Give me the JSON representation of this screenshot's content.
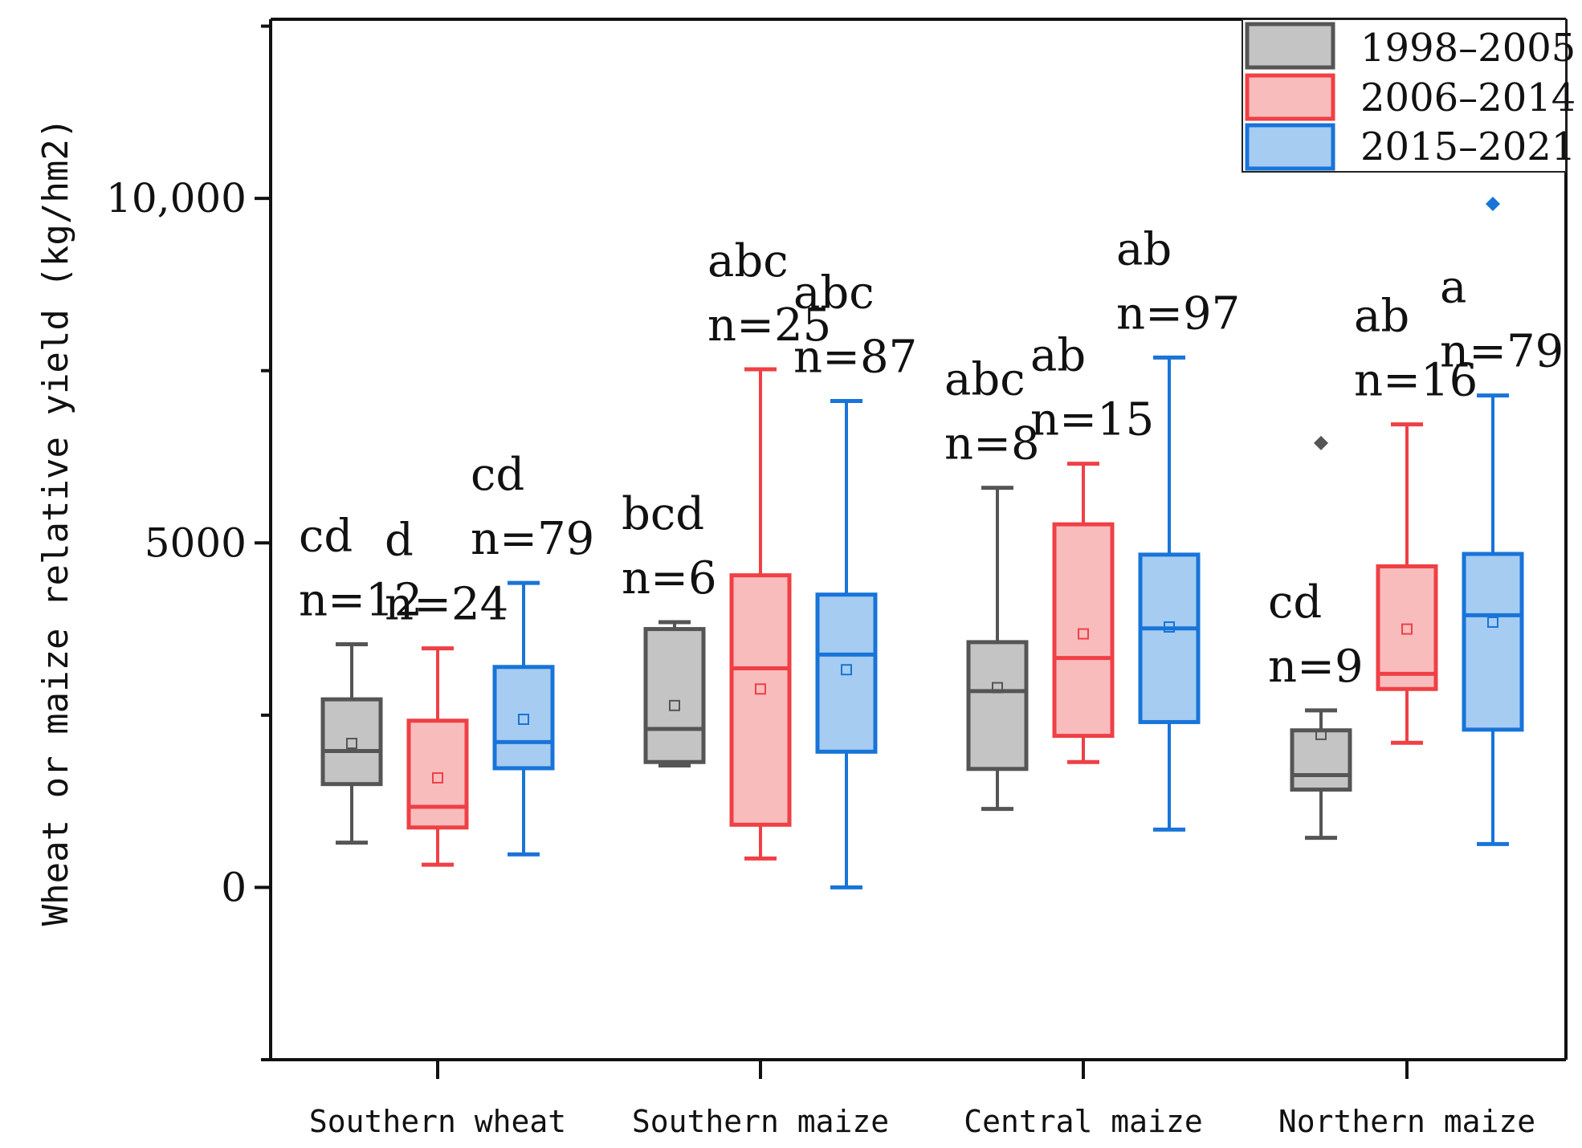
{
  "chart_data": {
    "type": "box",
    "ylabel": "Wheat or maize relative yield (kg/hm2)",
    "ylim": [
      -2500,
      12600
    ],
    "yticks": [
      {
        "value": 0,
        "label": "0"
      },
      {
        "value": 5000,
        "label": "5000"
      },
      {
        "value": 10000,
        "label": "10,000"
      }
    ],
    "categories": [
      "Southern wheat",
      "Southern maize",
      "Central maize",
      "Northern maize"
    ],
    "legend": {
      "position": "top-right",
      "entries": [
        "1998–2005",
        "2006–2014",
        "2015–2021"
      ]
    },
    "series": [
      {
        "name": "1998–2005",
        "stroke": "#555555",
        "fill": "#c4c4c4",
        "boxes": [
          {
            "min": 650,
            "q1": 1500,
            "median": 1980,
            "q3": 2730,
            "max": 3530,
            "mean": 2090,
            "outliers": [],
            "group": "cd",
            "n": "n=12"
          },
          {
            "min": 1770,
            "q1": 1820,
            "median": 2300,
            "q3": 3750,
            "max": 3850,
            "mean": 2640,
            "outliers": [],
            "group": "bcd",
            "n": "n=6"
          },
          {
            "min": 1140,
            "q1": 1720,
            "median": 2850,
            "q3": 3560,
            "max": 5800,
            "mean": 2900,
            "outliers": [],
            "group": "abc",
            "n": "n=8"
          },
          {
            "min": 720,
            "q1": 1420,
            "median": 1630,
            "q3": 2280,
            "max": 2570,
            "mean": 2220,
            "outliers": [
              6450
            ],
            "group": "cd",
            "n": "n=9"
          }
        ]
      },
      {
        "name": "2006–2014",
        "stroke": "#ef4045",
        "fill": "#f9bcbd",
        "boxes": [
          {
            "min": 330,
            "q1": 870,
            "median": 1170,
            "q3": 2420,
            "max": 3470,
            "mean": 1590,
            "outliers": [],
            "group": "d",
            "n": "n=24"
          },
          {
            "min": 420,
            "q1": 910,
            "median": 3180,
            "q3": 4530,
            "max": 7520,
            "mean": 2880,
            "outliers": [],
            "group": "abc",
            "n": "n=25"
          },
          {
            "min": 1820,
            "q1": 2200,
            "median": 3330,
            "q3": 5270,
            "max": 6150,
            "mean": 3680,
            "outliers": [],
            "group": "ab",
            "n": "n=15"
          },
          {
            "min": 2100,
            "q1": 2880,
            "median": 3100,
            "q3": 4660,
            "max": 6720,
            "mean": 3750,
            "outliers": [],
            "group": "ab",
            "n": "n=16"
          }
        ]
      },
      {
        "name": "2015–2021",
        "stroke": "#1874d8",
        "fill": "#a6ccf1",
        "boxes": [
          {
            "min": 480,
            "q1": 1730,
            "median": 2110,
            "q3": 3200,
            "max": 4420,
            "mean": 2440,
            "outliers": [],
            "group": "cd",
            "n": "n=79"
          },
          {
            "min": 0,
            "q1": 1970,
            "median": 3380,
            "q3": 4250,
            "max": 7060,
            "mean": 3160,
            "outliers": [],
            "group": "abc",
            "n": "n=87"
          },
          {
            "min": 840,
            "q1": 2400,
            "median": 3760,
            "q3": 4830,
            "max": 7690,
            "mean": 3780,
            "outliers": [],
            "group": "ab",
            "n": "n=97"
          },
          {
            "min": 630,
            "q1": 2290,
            "median": 3950,
            "q3": 4840,
            "max": 7140,
            "mean": 3850,
            "outliers": [
              9920
            ],
            "group": "a",
            "n": "n=79"
          }
        ]
      }
    ]
  }
}
